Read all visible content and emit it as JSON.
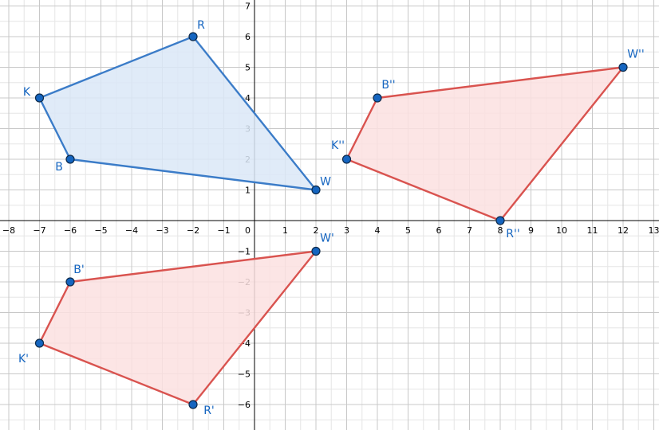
{
  "colors": {
    "original_stroke": "#3b7cc8",
    "original_fill": "#dbe7f7",
    "image_stroke": "#d9534f",
    "image_fill": "#fbe1e1",
    "vertex_fill": "#1565c0",
    "label": "#1565c0"
  },
  "chart_data": {
    "type": "coordinate-plane",
    "xlim": [
      -8.3,
      13.2
    ],
    "ylim": [
      -6.9,
      7.1
    ],
    "x_ticks": [
      -8,
      -7,
      -6,
      -5,
      -4,
      -3,
      -2,
      -1,
      1,
      2,
      3,
      4,
      5,
      6,
      7,
      8,
      9,
      10,
      11,
      12,
      13
    ],
    "y_ticks": [
      -6,
      -5,
      -4,
      -3,
      -2,
      -1,
      1,
      2,
      3,
      4,
      5,
      6,
      7
    ],
    "origin_label": "0",
    "grid": true,
    "polygons": [
      {
        "style": "original",
        "vertices": [
          {
            "label": "K",
            "x": -7,
            "y": 4
          },
          {
            "label": "R",
            "x": -2,
            "y": 6
          },
          {
            "label": "W",
            "x": 2,
            "y": 1
          },
          {
            "label": "B",
            "x": -6,
            "y": 2
          }
        ]
      },
      {
        "style": "image",
        "vertices": [
          {
            "label": "K'",
            "x": -7,
            "y": -4
          },
          {
            "label": "B'",
            "x": -6,
            "y": -2
          },
          {
            "label": "W'",
            "x": 2,
            "y": -1
          },
          {
            "label": "R'",
            "x": -2,
            "y": -6
          }
        ]
      },
      {
        "style": "image",
        "vertices": [
          {
            "label": "K''",
            "x": 3,
            "y": 2
          },
          {
            "label": "B''",
            "x": 4,
            "y": 4
          },
          {
            "label": "W''",
            "x": 12,
            "y": 5
          },
          {
            "label": "R''",
            "x": 8,
            "y": 0
          }
        ]
      }
    ]
  }
}
